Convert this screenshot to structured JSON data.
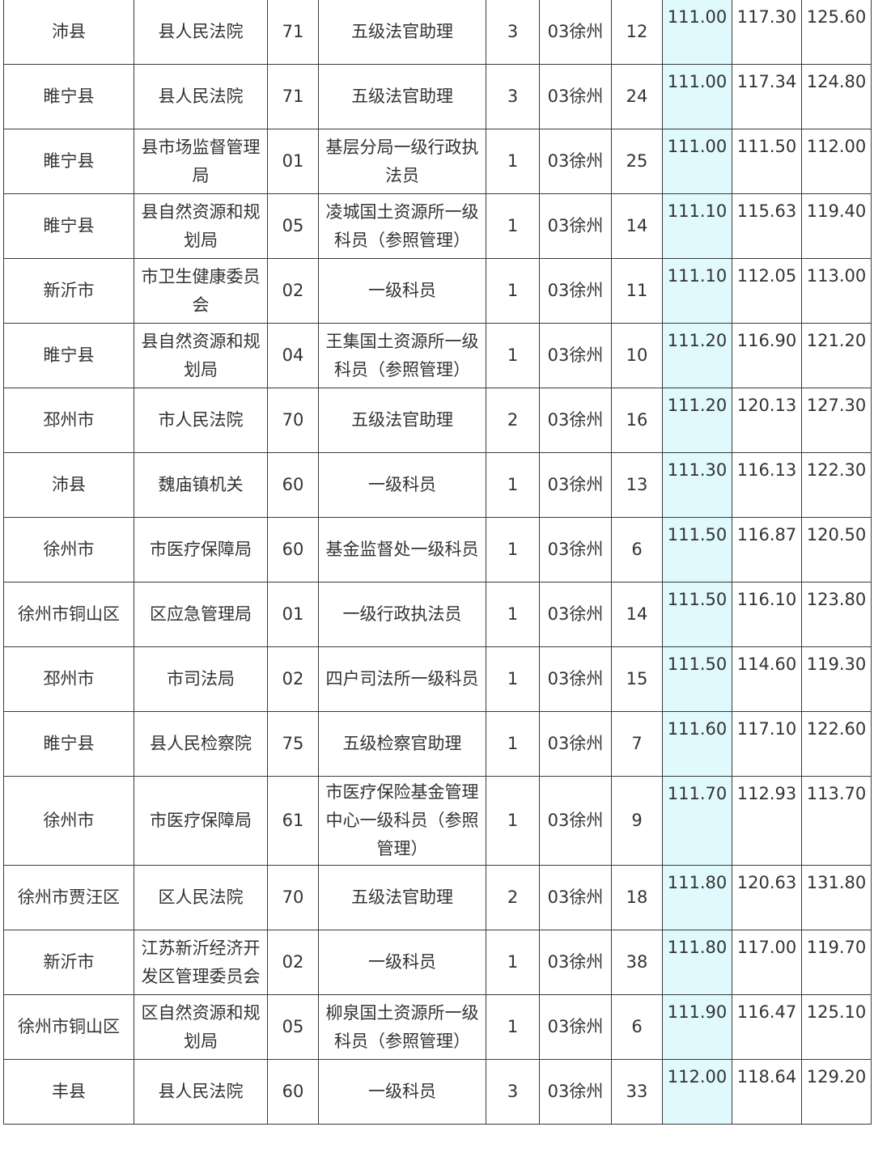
{
  "highlight_color": "#e0f9fc",
  "rows": [
    [
      "沛县",
      "县人民法院",
      "71",
      "五级法官助理",
      "3",
      "03徐州",
      "12",
      "111.00",
      "117.30",
      "125.60"
    ],
    [
      "睢宁县",
      "县人民法院",
      "71",
      "五级法官助理",
      "3",
      "03徐州",
      "24",
      "111.00",
      "117.34",
      "124.80"
    ],
    [
      "睢宁县",
      "县市场监督管理局",
      "01",
      "基层分局一级行政执法员",
      "1",
      "03徐州",
      "25",
      "111.00",
      "111.50",
      "112.00"
    ],
    [
      "睢宁县",
      "县自然资源和规划局",
      "05",
      "凌城国土资源所一级科员（参照管理）",
      "1",
      "03徐州",
      "14",
      "111.10",
      "115.63",
      "119.40"
    ],
    [
      "新沂市",
      "市卫生健康委员会",
      "02",
      "一级科员",
      "1",
      "03徐州",
      "11",
      "111.10",
      "112.05",
      "113.00"
    ],
    [
      "睢宁县",
      "县自然资源和规划局",
      "04",
      "王集国土资源所一级科员（参照管理）",
      "1",
      "03徐州",
      "10",
      "111.20",
      "116.90",
      "121.20"
    ],
    [
      "邳州市",
      "市人民法院",
      "70",
      "五级法官助理",
      "2",
      "03徐州",
      "16",
      "111.20",
      "120.13",
      "127.30"
    ],
    [
      "沛县",
      "魏庙镇机关",
      "60",
      "一级科员",
      "1",
      "03徐州",
      "13",
      "111.30",
      "116.13",
      "122.30"
    ],
    [
      "徐州市",
      "市医疗保障局",
      "60",
      "基金监督处一级科员",
      "1",
      "03徐州",
      "6",
      "111.50",
      "116.87",
      "120.50"
    ],
    [
      "徐州市铜山区",
      "区应急管理局",
      "01",
      "一级行政执法员",
      "1",
      "03徐州",
      "14",
      "111.50",
      "116.10",
      "123.80"
    ],
    [
      "邳州市",
      "市司法局",
      "02",
      "四户司法所一级科员",
      "1",
      "03徐州",
      "15",
      "111.50",
      "114.60",
      "119.30"
    ],
    [
      "睢宁县",
      "县人民检察院",
      "75",
      "五级检察官助理",
      "1",
      "03徐州",
      "7",
      "111.60",
      "117.10",
      "122.60"
    ],
    [
      "徐州市",
      "市医疗保障局",
      "61",
      "市医疗保险基金管理中心一级科员（参照管理）",
      "1",
      "03徐州",
      "9",
      "111.70",
      "112.93",
      "113.70"
    ],
    [
      "徐州市贾汪区",
      "区人民法院",
      "70",
      "五级法官助理",
      "2",
      "03徐州",
      "18",
      "111.80",
      "120.63",
      "131.80"
    ],
    [
      "新沂市",
      "江苏新沂经济开发区管理委员会",
      "02",
      "一级科员",
      "1",
      "03徐州",
      "38",
      "111.80",
      "117.00",
      "119.70"
    ],
    [
      "徐州市铜山区",
      "区自然资源和规划局",
      "05",
      "柳泉国土资源所一级科员（参照管理）",
      "1",
      "03徐州",
      "6",
      "111.90",
      "116.47",
      "125.10"
    ],
    [
      "丰县",
      "县人民法院",
      "60",
      "一级科员",
      "3",
      "03徐州",
      "33",
      "112.00",
      "118.64",
      "129.20"
    ]
  ]
}
